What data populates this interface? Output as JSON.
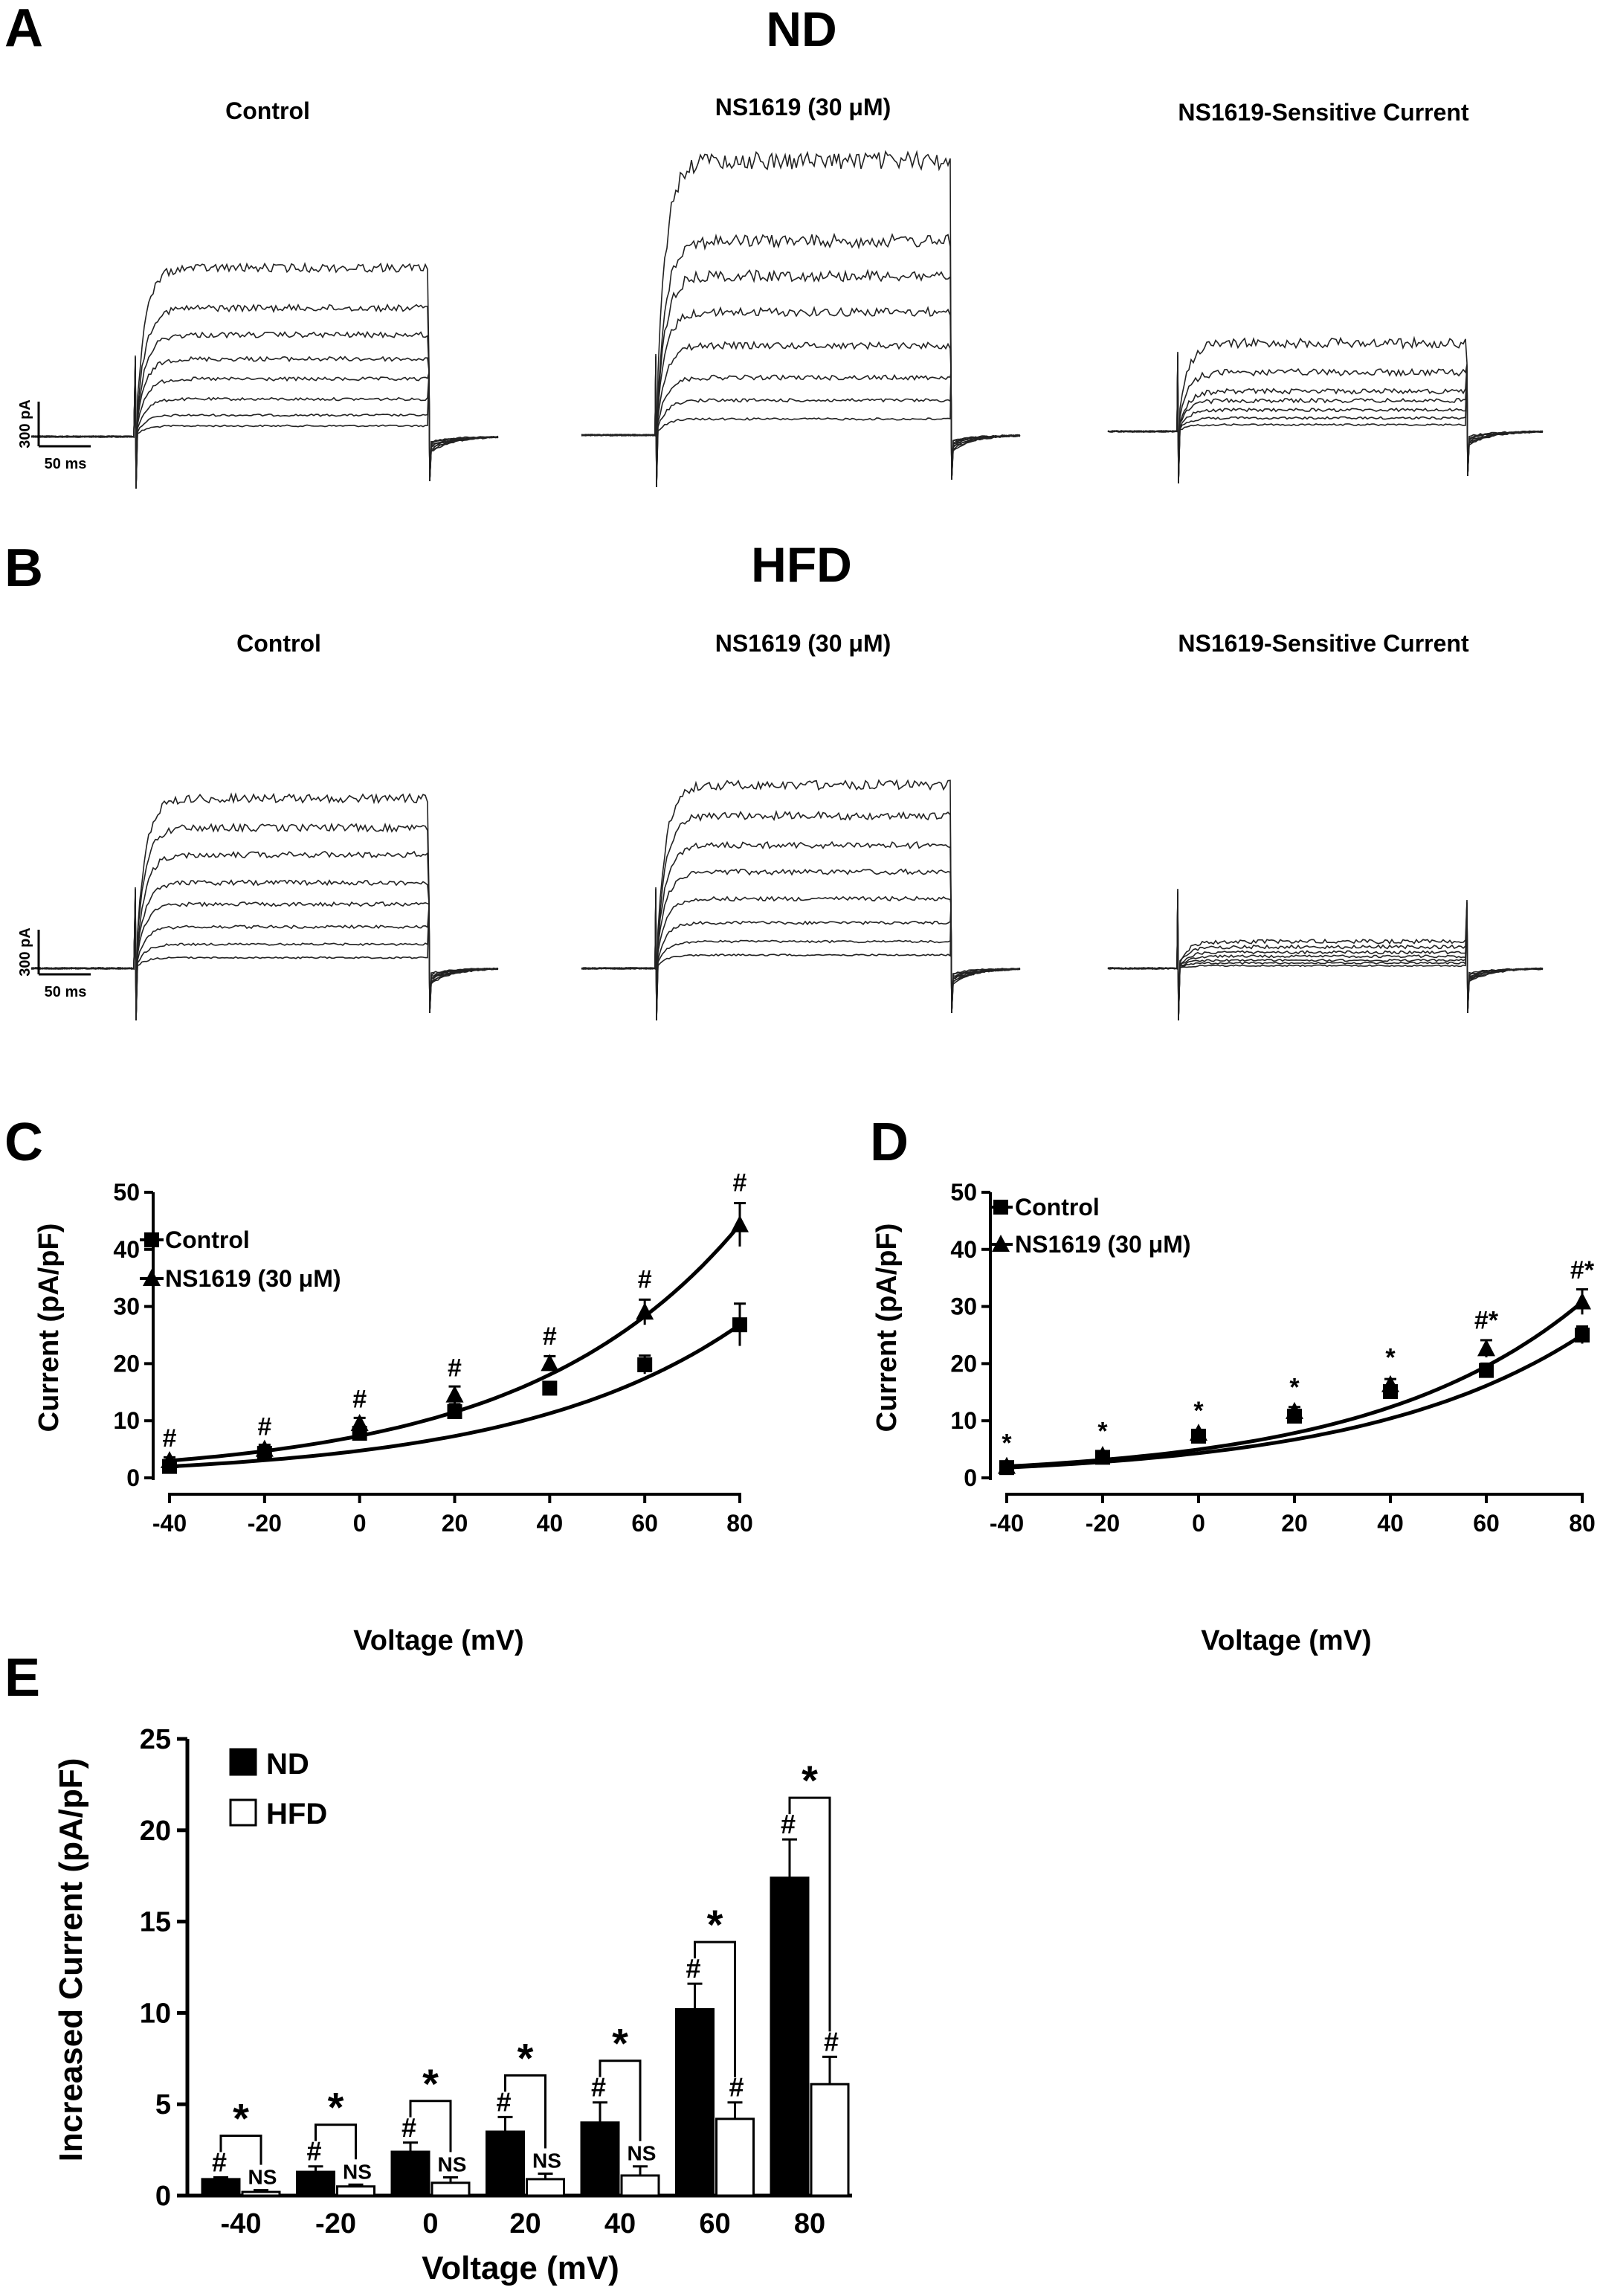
{
  "panel_labels": [
    "A",
    "B",
    "C",
    "D",
    "E"
  ],
  "traces": {
    "A": {
      "title": "ND",
      "scalebar_y": "300 pA",
      "scalebar_x": "50 ms",
      "columns": [
        {
          "title": "Control",
          "levels": [
            0.08,
            0.16,
            0.28,
            0.43,
            0.58,
            0.76,
            0.96,
            1.26
          ],
          "amp": 1.0
        },
        {
          "title": "NS1619 (30 μM)",
          "levels": [
            0.12,
            0.26,
            0.43,
            0.67,
            0.92,
            1.19,
            1.45,
            2.05
          ],
          "amp": 1.4
        },
        {
          "title": "NS1619-Sensitive Current",
          "levels": [
            0.05,
            0.1,
            0.16,
            0.23,
            0.3,
            0.44,
            0.66
          ],
          "amp": 2.2
        }
      ]
    },
    "B": {
      "title": "HFD",
      "scalebar_y": "300 pA",
      "scalebar_x": "50 ms",
      "columns": [
        {
          "title": "Control",
          "levels": [
            0.08,
            0.18,
            0.31,
            0.48,
            0.64,
            0.85,
            1.05,
            1.27
          ],
          "amp": 1.0
        },
        {
          "title": "NS1619 (30 μM)",
          "levels": [
            0.1,
            0.2,
            0.34,
            0.52,
            0.72,
            0.92,
            1.14,
            1.37
          ],
          "amp": 1.0
        },
        {
          "title": "NS1619-Sensitive Current",
          "levels": [
            0.02,
            0.04,
            0.06,
            0.09,
            0.12,
            0.16,
            0.2
          ],
          "amp": 2.5
        }
      ]
    }
  },
  "chart_data": [
    {
      "panel": "C",
      "type": "line",
      "xlabel": "Voltage (mV)",
      "ylabel": "Current (pA/pF)",
      "xlim": [
        -40,
        80
      ],
      "ylim": [
        0,
        50
      ],
      "xticks": [
        -40,
        -20,
        0,
        20,
        40,
        60,
        80
      ],
      "yticks": [
        0,
        10,
        20,
        30,
        40,
        50
      ],
      "legend_position": "top-left",
      "x": [
        -40,
        -20,
        0,
        20,
        40,
        60,
        80
      ],
      "series": [
        {
          "name": "Control",
          "marker": "square",
          "values": [
            2.0,
            4.3,
            7.8,
            11.6,
            15.7,
            19.8,
            26.8
          ],
          "errors": [
            0.6,
            0.7,
            0.7,
            1.3,
            1.1,
            1.6,
            3.7
          ]
        },
        {
          "name": "NS1619 (30 μM)",
          "marker": "triangle",
          "values": [
            3.0,
            5.0,
            9.5,
            14.5,
            20.0,
            29.0,
            44.3
          ],
          "errors": [
            0.6,
            0.8,
            1.0,
            1.5,
            1.3,
            2.2,
            3.8
          ]
        }
      ],
      "annotations": [
        {
          "x": -40,
          "y": 5.5,
          "text": "#"
        },
        {
          "x": -20,
          "y": 7.5,
          "text": "#"
        },
        {
          "x": 0,
          "y": 12.3,
          "text": "#"
        },
        {
          "x": 20,
          "y": 17.8,
          "text": "#"
        },
        {
          "x": 40,
          "y": 23.3,
          "text": "#"
        },
        {
          "x": 60,
          "y": 33.3,
          "text": "#"
        },
        {
          "x": 80,
          "y": 50.2,
          "text": "#"
        }
      ]
    },
    {
      "panel": "D",
      "type": "line",
      "xlabel": "Voltage (mV)",
      "ylabel": "Current (pA/pF)",
      "xlim": [
        -40,
        80
      ],
      "ylim": [
        0,
        50
      ],
      "xticks": [
        -40,
        -20,
        0,
        20,
        40,
        60,
        80
      ],
      "yticks": [
        0,
        10,
        20,
        30,
        40,
        50
      ],
      "legend_position": "top-left",
      "x": [
        -40,
        -20,
        0,
        20,
        40,
        60,
        80
      ],
      "series": [
        {
          "name": "Control",
          "marker": "square",
          "values": [
            1.8,
            3.6,
            7.3,
            10.8,
            15.1,
            18.8,
            25.0
          ],
          "errors": [
            0.4,
            0.5,
            0.6,
            0.9,
            1.0,
            1.2,
            1.5
          ]
        },
        {
          "name": "NS1619 (30 μM)",
          "marker": "triangle",
          "values": [
            2.0,
            3.9,
            7.8,
            11.6,
            16.3,
            22.6,
            30.8
          ],
          "errors": [
            0.4,
            0.5,
            0.6,
            0.8,
            1.0,
            1.5,
            2.2
          ]
        }
      ],
      "annotations": [
        {
          "x": -40,
          "y": 4.6,
          "text": "*"
        },
        {
          "x": -20,
          "y": 6.7,
          "text": "*"
        },
        {
          "x": 0,
          "y": 10.3,
          "text": "*"
        },
        {
          "x": 20,
          "y": 14.4,
          "text": "*"
        },
        {
          "x": 40,
          "y": 19.6,
          "text": "*"
        },
        {
          "x": 60,
          "y": 26.1,
          "text": "#*"
        },
        {
          "x": 80,
          "y": 34.9,
          "text": "#*"
        }
      ]
    },
    {
      "panel": "E",
      "type": "bar",
      "xlabel": "Voltage (mV)",
      "ylabel": "Increased Current (pA/pF)",
      "ylim": [
        0,
        25
      ],
      "yticks": [
        0,
        5,
        10,
        15,
        20,
        25
      ],
      "legend_position": "top-left",
      "categories": [
        "-40",
        "-20",
        "0",
        "20",
        "40",
        "60",
        "80"
      ],
      "series": [
        {
          "name": "ND",
          "fill": "#000000",
          "values": [
            0.9,
            1.3,
            2.4,
            3.5,
            4.0,
            10.2,
            17.4
          ],
          "errors": [
            0.1,
            0.3,
            0.5,
            0.8,
            1.1,
            1.4,
            2.1
          ],
          "marks": [
            "#",
            "#",
            "#",
            "#",
            "#",
            "#",
            "#"
          ]
        },
        {
          "name": "HFD",
          "fill": "#ffffff",
          "values": [
            0.2,
            0.5,
            0.7,
            0.9,
            1.1,
            4.2,
            6.1
          ],
          "errors": [
            0.1,
            0.1,
            0.3,
            0.3,
            0.5,
            0.9,
            1.5
          ],
          "marks": [
            "NS",
            "NS",
            "NS",
            "NS",
            "NS",
            "#",
            "#"
          ]
        }
      ],
      "comparison_mark": "*"
    }
  ]
}
